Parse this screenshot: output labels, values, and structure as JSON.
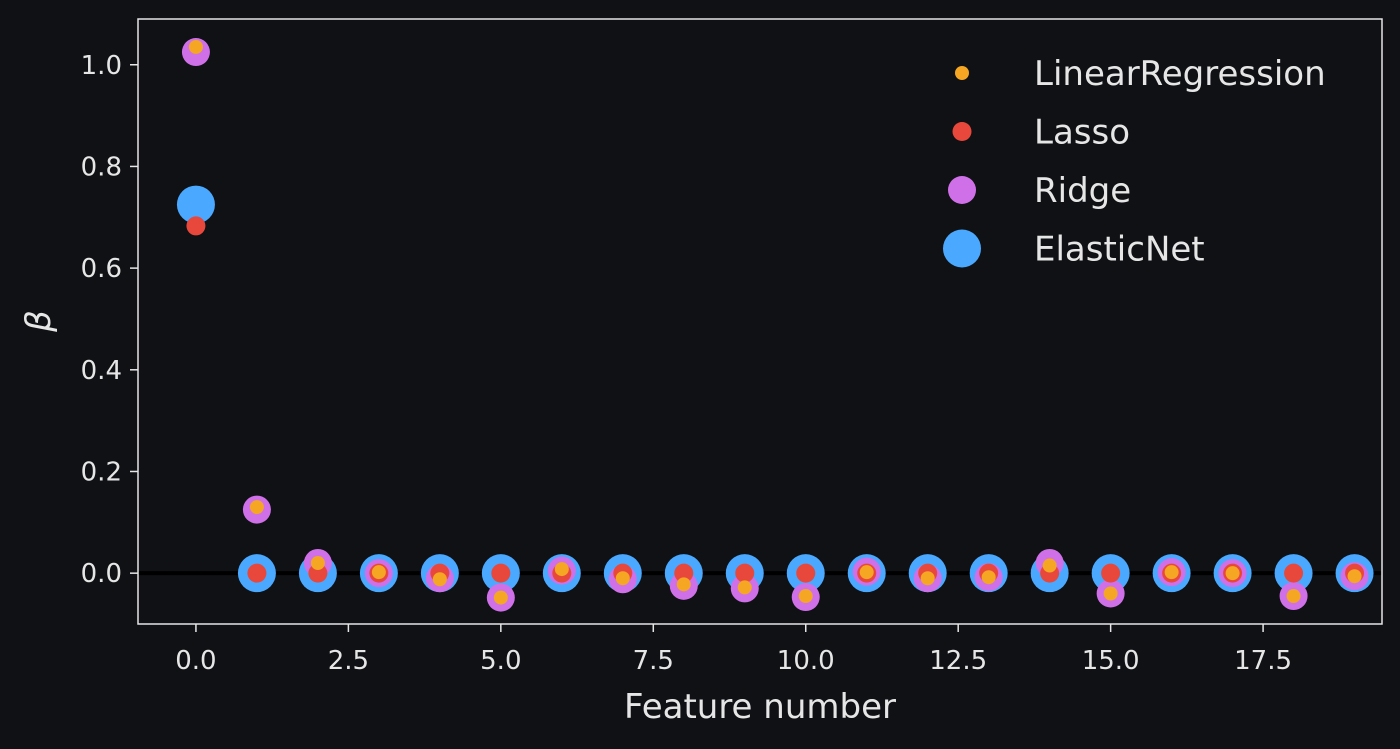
{
  "chart_data": {
    "type": "scatter",
    "xlabel": "Feature number",
    "ylabel": "β",
    "xlim": [
      -0.95,
      19.45
    ],
    "ylim": [
      -0.1,
      1.09
    ],
    "xticks": [
      0.0,
      2.5,
      5.0,
      7.5,
      10.0,
      12.5,
      15.0,
      17.5
    ],
    "xtick_labels": [
      "0.0",
      "2.5",
      "5.0",
      "7.5",
      "10.0",
      "12.5",
      "15.0",
      "17.5"
    ],
    "yticks": [
      0.0,
      0.2,
      0.4,
      0.6,
      0.8,
      1.0
    ],
    "ytick_labels": [
      "0.0",
      "0.2",
      "0.4",
      "0.6",
      "0.8",
      "1.0"
    ],
    "hline": 0,
    "grid": false,
    "legend_position": "top-right",
    "x": [
      0,
      1,
      2,
      3,
      4,
      5,
      6,
      7,
      8,
      9,
      10,
      11,
      12,
      13,
      14,
      15,
      16,
      17,
      18,
      19
    ],
    "series": [
      {
        "name": "ElasticNet",
        "color": "#4aa8ff",
        "marker_size": "large",
        "values": [
          0.725,
          0,
          0,
          0,
          0,
          0,
          0,
          0,
          0,
          0,
          0,
          0,
          0,
          0,
          0,
          0,
          0,
          0,
          0,
          0
        ]
      },
      {
        "name": "Ridge",
        "color": "#d070e8",
        "marker_size": "medium",
        "values": [
          1.025,
          0.125,
          0.02,
          0,
          -0.01,
          -0.048,
          0.005,
          -0.012,
          -0.025,
          -0.03,
          -0.047,
          0.003,
          -0.01,
          -0.008,
          0.02,
          -0.04,
          0.002,
          0,
          -0.045,
          -0.006
        ]
      },
      {
        "name": "Lasso",
        "color": "#e8483c",
        "marker_size": "small",
        "values": [
          0.683,
          0,
          0,
          0,
          0,
          0,
          0,
          0,
          0,
          0,
          0,
          0,
          0,
          0,
          0,
          0,
          0,
          0,
          0,
          0
        ]
      },
      {
        "name": "LinearRegression",
        "color": "#f5a623",
        "marker_size": "tiny",
        "values": [
          1.035,
          0.13,
          0.02,
          0.002,
          -0.012,
          -0.048,
          0.008,
          -0.01,
          -0.022,
          -0.028,
          -0.045,
          0.002,
          -0.01,
          -0.008,
          0.015,
          -0.04,
          0.002,
          0,
          -0.045,
          -0.006
        ]
      }
    ],
    "legend_order": [
      "LinearRegression",
      "Lasso",
      "Ridge",
      "ElasticNet"
    ]
  }
}
